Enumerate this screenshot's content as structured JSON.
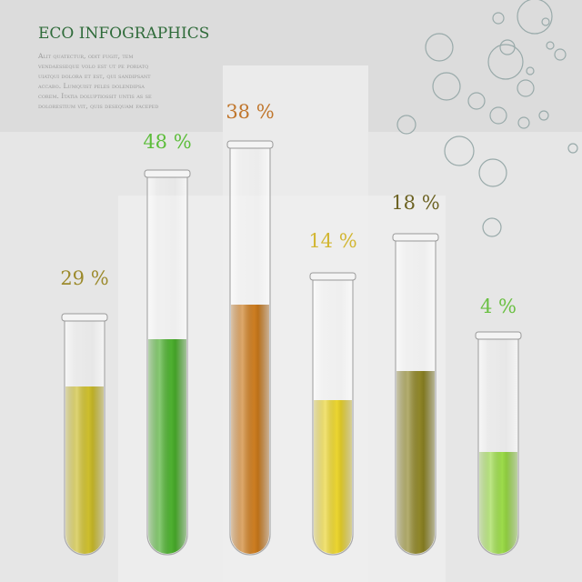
{
  "header": {
    "title": "ECO INFOGRAPHICS",
    "body": [
      "Alit quatectur, odit fugit, tem",
      "vendaesseque volo est ut pe poriatq",
      "uiatqui dolora et est, qui sandipsant",
      "accabo. Lumquist peles dolendipsa",
      "corem. Itatia doluptiossit untis as se",
      "dolorestium vit, quis desequam faceped"
    ]
  },
  "tubes": [
    {
      "label": "29 %",
      "color": "#c9b91c",
      "label_color": "#9c8a2c"
    },
    {
      "label": "48 %",
      "color": "#3ea91e",
      "label_color": "#5cbd3a"
    },
    {
      "label": "38 %",
      "color": "#c8720e",
      "label_color": "#c0762c"
    },
    {
      "label": "14 %",
      "color": "#e9d11e",
      "label_color": "#d2b632"
    },
    {
      "label": "18 %",
      "color": "#857b16",
      "label_color": "#6c6222"
    },
    {
      "label": "4 %",
      "color": "#93d83a",
      "label_color": "#6ac042"
    }
  ]
}
